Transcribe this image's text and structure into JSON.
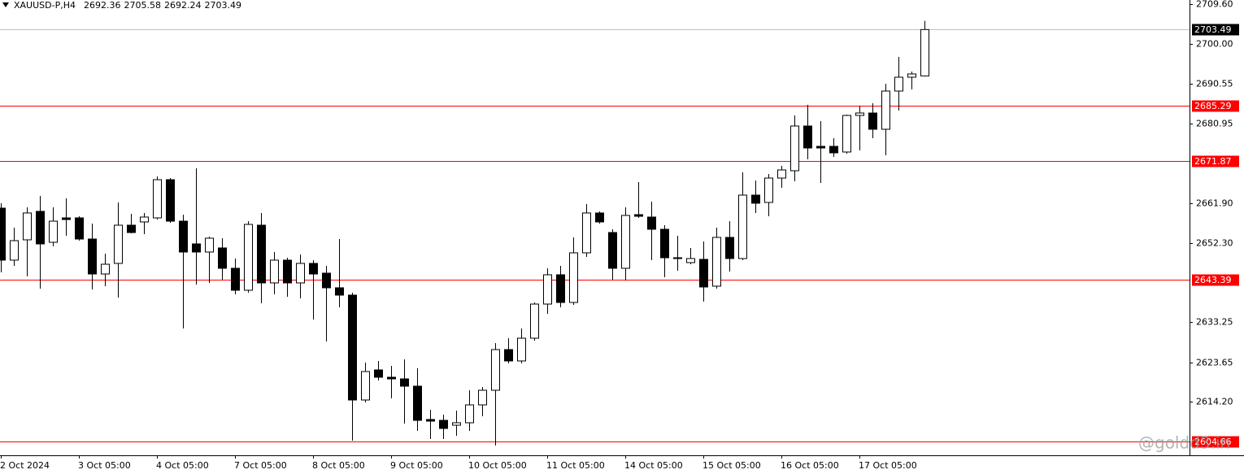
{
  "chart_data": {
    "type": "candlestick",
    "symbol": "XAUUSD-P,H4",
    "x": [
      "2 Oct 2024",
      null,
      null,
      null,
      null,
      null,
      "3 Oct 05:00",
      null,
      null,
      null,
      null,
      null,
      "4 Oct 05:00",
      null,
      null,
      null,
      null,
      null,
      "7 Oct 05:00",
      null,
      null,
      null,
      null,
      null,
      "8 Oct 05:00",
      null,
      null,
      null,
      null,
      null,
      "9 Oct 05:00",
      null,
      null,
      null,
      null,
      null,
      "10 Oct 05:00",
      null,
      null,
      null,
      null,
      null,
      "11 Oct 05:00",
      null,
      null,
      null,
      null,
      null,
      "14 Oct 05:00",
      null,
      null,
      null,
      null,
      null,
      "15 Oct 05:00",
      null,
      null,
      null,
      null,
      null,
      "16 Oct 05:00",
      null,
      null,
      null,
      null,
      null,
      "17 Oct 05:00",
      null,
      null,
      null,
      null,
      null
    ],
    "open": [
      2660.63,
      2648.15,
      2653.03,
      2659.86,
      2652.44,
      2658.29,
      2658.29,
      2653.22,
      2644.83,
      2647.37,
      2656.54,
      2657.32,
      2658.29,
      2667.46,
      2657.51,
      2652.05,
      2650.1,
      2651.08,
      2646.2,
      2640.93,
      2656.54,
      2642.69,
      2648.15,
      2642.69,
      2647.37,
      2645.03,
      2641.52,
      2639.76,
      2614.59,
      2621.81,
      2620.05,
      2619.66,
      2617.91,
      2609.91,
      2609.71,
      2608.54,
      2609.13,
      2613.42,
      2616.93,
      2626.69,
      2623.96,
      2629.42,
      2637.61,
      2644.64,
      2638.0,
      2649.91,
      2659.47,
      2654.78,
      2646.2,
      2659.07,
      2658.49,
      2655.56,
      2648.73,
      2647.56,
      2648.34,
      2641.91,
      2653.61,
      2648.54,
      2663.76,
      2662.0,
      2667.85,
      2669.61,
      2680.34,
      2675.46,
      2675.46,
      2674.1,
      2682.88,
      2683.46,
      2679.56,
      2688.73,
      2692.05,
      2692.36
    ],
    "high": [
      2661.81,
      2655.95,
      2660.83,
      2663.56,
      2660.83,
      2662.98,
      2658.68,
      2656.93,
      2649.71,
      2662.0,
      2659.27,
      2659.47,
      2668.24,
      2667.85,
      2659.07,
      2670.19,
      2653.81,
      2653.42,
      2648.54,
      2657.51,
      2659.47,
      2650.1,
      2648.73,
      2649.51,
      2648.15,
      2646.78,
      2653.22,
      2640.34,
      2623.57,
      2623.96,
      2622.79,
      2624.35,
      2622.2,
      2612.25,
      2611.08,
      2612.06,
      2616.93,
      2617.71,
      2628.25,
      2629.42,
      2631.76,
      2638.0,
      2646.2,
      2646.78,
      2653.61,
      2661.61,
      2659.86,
      2655.56,
      2660.83,
      2666.88,
      2662.2,
      2656.54,
      2654.0,
      2651.08,
      2652.64,
      2655.95,
      2657.51,
      2669.22,
      2667.27,
      2668.83,
      2670.78,
      2682.88,
      2685.41,
      2681.51,
      2677.41,
      2683.07,
      2685.22,
      2685.8,
      2690.48,
      2696.92,
      2693.41,
      2705.58
    ],
    "low": [
      2645.22,
      2646.78,
      2644.25,
      2641.32,
      2651.47,
      2654.0,
      2652.83,
      2641.13,
      2641.91,
      2639.17,
      2654.59,
      2654.39,
      2657.9,
      2657.12,
      2631.76,
      2642.3,
      2642.69,
      2643.47,
      2639.95,
      2640.34,
      2637.81,
      2639.95,
      2639.37,
      2638.98,
      2633.91,
      2628.64,
      2636.83,
      2604.84,
      2614.01,
      2619.27,
      2615.0,
      2608.93,
      2607.18,
      2605.23,
      2605.23,
      2606.01,
      2607.18,
      2610.69,
      2603.67,
      2623.37,
      2623.37,
      2628.83,
      2635.27,
      2636.83,
      2637.42,
      2648.93,
      2656.93,
      2643.47,
      2643.27,
      2658.29,
      2648.15,
      2644.05,
      2645.61,
      2647.17,
      2638.2,
      2641.32,
      2645.42,
      2648.15,
      2659.47,
      2658.68,
      2665.51,
      2667.07,
      2672.34,
      2666.68,
      2672.93,
      2673.71,
      2674.49,
      2677.41,
      2673.32,
      2684.05,
      2689.12,
      2692.24
    ],
    "close": [
      2648.15,
      2652.83,
      2659.47,
      2652.05,
      2657.51,
      2657.9,
      2653.22,
      2644.83,
      2647.17,
      2656.54,
      2654.78,
      2658.49,
      2667.46,
      2657.51,
      2650.1,
      2650.1,
      2653.42,
      2646.2,
      2640.93,
      2656.73,
      2642.69,
      2648.15,
      2642.69,
      2647.37,
      2644.83,
      2641.52,
      2639.76,
      2614.59,
      2621.42,
      2620.05,
      2619.66,
      2617.91,
      2609.71,
      2609.52,
      2607.76,
      2609.13,
      2613.42,
      2616.93,
      2626.69,
      2623.96,
      2629.42,
      2637.61,
      2644.64,
      2638.0,
      2649.91,
      2659.47,
      2657.32,
      2646.2,
      2658.88,
      2658.68,
      2655.56,
      2648.73,
      2648.54,
      2648.54,
      2641.71,
      2653.61,
      2648.54,
      2663.76,
      2661.81,
      2667.85,
      2669.8,
      2680.34,
      2675.07,
      2675.07,
      2673.9,
      2682.88,
      2683.46,
      2679.56,
      2688.73,
      2692.05,
      2692.83,
      2703.49
    ],
    "up_color": "#ffffff",
    "down_color": "#000000",
    "ylim": [
      2601.32,
      2710.58
    ],
    "yticks": [
      {
        "value": 2709.6,
        "label": "2709.60"
      },
      {
        "value": 2700,
        "label": "2700.00"
      },
      2690.55,
      2680.95,
      {
        "value": 2661.9,
        "label": "2661.90"
      },
      {
        "value": 2652.3,
        "label": "2652.30"
      },
      2633.25,
      2623.65,
      {
        "value": 2614.2,
        "label": "2614.20"
      }
    ],
    "hlines": [
      {
        "value": 2685.29,
        "color": "#ff0000"
      },
      {
        "value": 2671.87,
        "color": "#ff0000"
      },
      {
        "value": 2643.39,
        "color": "#ff0000"
      },
      {
        "value": 2604.66,
        "color": "#ff0000"
      }
    ],
    "bid_line_color": "#c0c0c0",
    "watermark": "@goldd3.in"
  }
}
